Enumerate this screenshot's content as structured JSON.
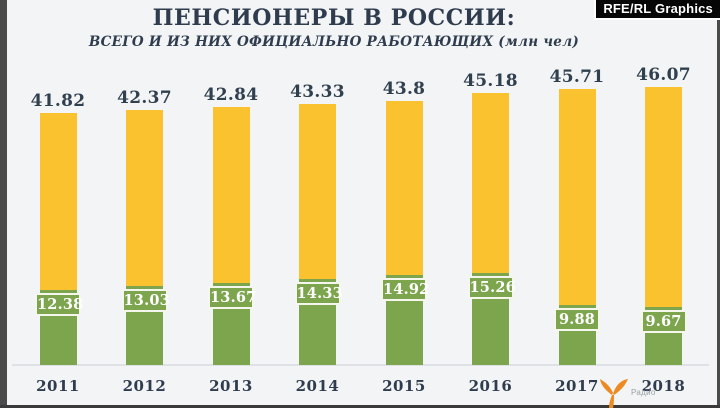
{
  "header": {
    "badge": "RFE/RL Graphics",
    "title": "ПЕНСИОНЕРЫ В РОССИИ:",
    "subtitle": "ВСЕГО И ИЗ НИХ ОФИЦИАЛЬНО РАБОТАЮЩИХ (млн чел)"
  },
  "footer": {
    "logo_text": "Радио"
  },
  "chart_data": {
    "type": "bar",
    "title": "ПЕНСИОНЕРЫ В РОССИИ:",
    "subtitle": "ВСЕГО И ИЗ НИХ ОФИЦИАЛЬНО РАБОТАЮЩИХ (млн чел)",
    "unit": "млн чел",
    "categories": [
      "2011",
      "2012",
      "2013",
      "2014",
      "2015",
      "2016",
      "2017",
      "2018"
    ],
    "series": [
      {
        "name": "Всего пенсионеров",
        "color": "#FBC230",
        "values": [
          41.82,
          42.37,
          42.84,
          43.33,
          43.8,
          45.18,
          45.71,
          46.07
        ],
        "labels": [
          "41.82",
          "42.37",
          "42.84",
          "43.33",
          "43.8",
          "45.18",
          "45.71",
          "46.07"
        ]
      },
      {
        "name": "Из них официально работающих",
        "color": "#7DA54E",
        "values": [
          12.38,
          13.03,
          13.67,
          14.33,
          14.92,
          15.26,
          9.88,
          9.67
        ],
        "labels": [
          "12.38",
          "13.03",
          "13.67",
          "14.33",
          "14.92",
          "15.26",
          "9.88",
          "9.67"
        ]
      }
    ],
    "ylim": [
      0,
      48
    ],
    "grid": false,
    "legend": "none"
  },
  "colors": {
    "background": "#F2F4F5",
    "total_bar": "#FBC230",
    "working_bar": "#7DA54E",
    "text": "#2F3C4E",
    "value_label_text": "#31404F",
    "working_label_text": "#FFFFFF",
    "working_label_border": "#F5F7EE",
    "badge_bg": "#060606",
    "badge_text": "#FFFFFF",
    "axis_line": "#DFE2E4",
    "frame": "#4A4A4A",
    "logo_orange": "#ED8A23"
  }
}
